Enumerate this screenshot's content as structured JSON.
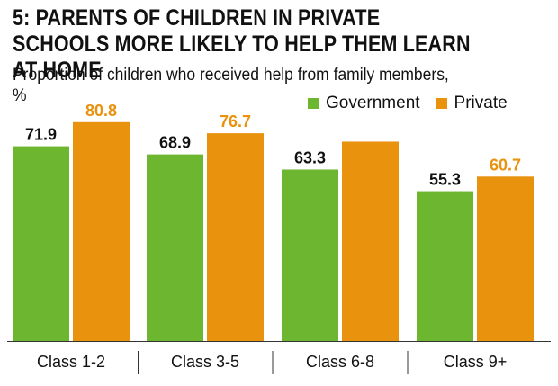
{
  "title": "5: PARENTS OF CHILDREN IN PRIVATE SCHOOLS MORE LIKELY TO HELP THEM LEARN AT HOME",
  "subtitle": "Proportion of children who received help from family members, %",
  "legend": [
    {
      "label": "Government",
      "color": "#6cb630"
    },
    {
      "label": "Private",
      "color": "#e8920e"
    }
  ],
  "chart_data": {
    "type": "bar",
    "title": "5: PARENTS OF CHILDREN IN PRIVATE SCHOOLS MORE LIKELY TO HELP THEM LEARN AT HOME",
    "subtitle": "Proportion of children who received help from family members, %",
    "categories": [
      "Class 1-2",
      "Class 3-5",
      "Class 6-8",
      "Class 9+"
    ],
    "series": [
      {
        "name": "Government",
        "color": "#6cb630",
        "values": [
          71.9,
          68.9,
          63.3,
          55.3
        ],
        "labels": [
          "71.9",
          "68.9",
          "63.3",
          "55.3"
        ]
      },
      {
        "name": "Private",
        "color": "#e8920e",
        "values": [
          80.8,
          76.7,
          73.6,
          60.7
        ],
        "labels": [
          "80.8",
          "76.7",
          "",
          "60.7"
        ]
      }
    ],
    "ylim": [
      0,
      100
    ],
    "grid": false,
    "legend_position": "top-right",
    "xlabel": "",
    "ylabel": ""
  }
}
